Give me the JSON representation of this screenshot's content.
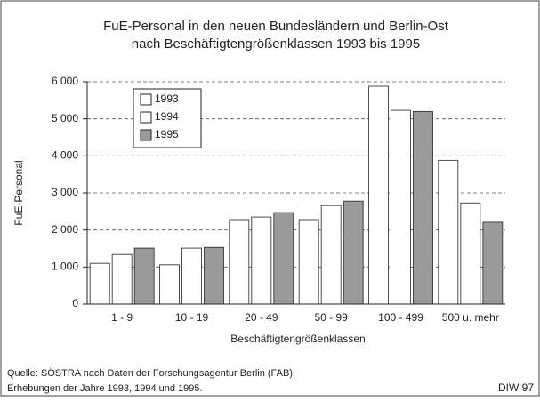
{
  "chart_data": {
    "type": "bar",
    "title": "FuE-Personal in den neuen Bundesländern und Berlin-Ost",
    "subtitle": "nach Beschäftigtengrößenklassen 1993 bis 1995",
    "y_label": "FuE-Personal",
    "x_label": "Beschäftigtengrößenklassen",
    "categories": [
      "1 - 9",
      "10 - 19",
      "20 - 49",
      "50 - 99",
      "100 - 499",
      "500 u. mehr"
    ],
    "series": [
      {
        "name": "1993",
        "color": "#ffffff",
        "values": [
          1100,
          1060,
          2280,
          2280,
          5880,
          3880
        ]
      },
      {
        "name": "1994",
        "color": "#ffffff",
        "values": [
          1340,
          1510,
          2350,
          2660,
          5230,
          2730
        ]
      },
      {
        "name": "1995",
        "color": "#9a9a9a",
        "values": [
          1510,
          1530,
          2470,
          2780,
          5200,
          2210
        ]
      }
    ],
    "ylim": [
      0,
      6000
    ],
    "yticks": [
      0,
      {
        "value": 1000,
        "label": "1 000"
      },
      {
        "value": 2000,
        "label": "2 000"
      },
      {
        "value": 3000,
        "label": "3 000"
      },
      {
        "value": 4000,
        "label": "4 000"
      },
      {
        "value": 5000,
        "label": "5 000"
      },
      {
        "value": 6000,
        "label": "6 000"
      }
    ],
    "grid": true,
    "legend": "top-left",
    "source": [
      "Quelle: SÖSTRA nach Daten der Forschungsagentur Berlin (FAB),",
      "Erhebungen der Jahre 1993, 1994 und 1995."
    ],
    "credit": "DIW 97"
  }
}
